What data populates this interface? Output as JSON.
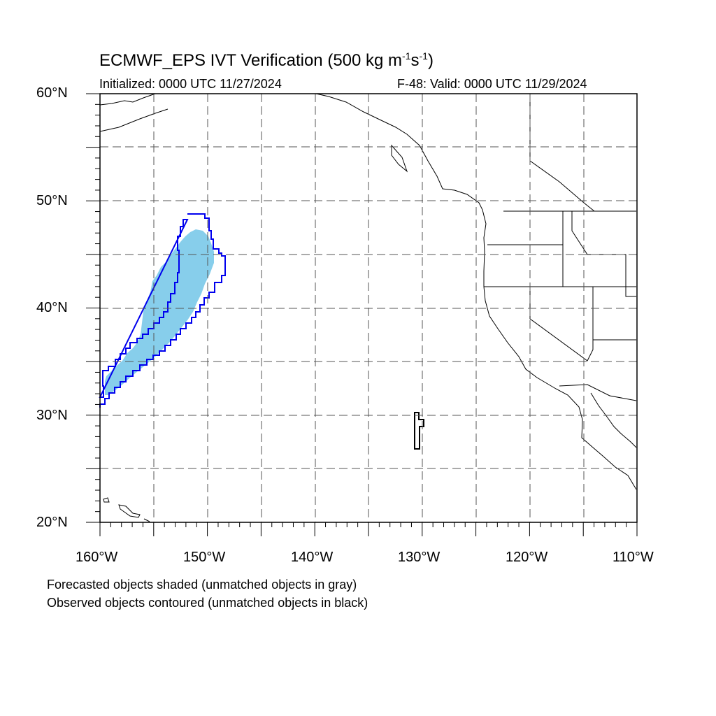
{
  "title": {
    "prefix": "ECMWF_EPS IVT Verification (500 kg m",
    "sup1": "-1",
    "mid": "s",
    "sup2": "-1",
    "suffix": ")"
  },
  "initialized": "Initialized: 0000 UTC 11/27/2024",
  "valid": "F-48: Valid: 0000 UTC 11/29/2024",
  "map": {
    "lon_range": [
      -160,
      -110
    ],
    "lat_range": [
      20,
      60
    ],
    "gridlines": "dashed, every 5 degrees",
    "lat_labels": [
      "60°N",
      "50°N",
      "40°N",
      "30°N",
      "20°N"
    ],
    "lon_labels": [
      "160°W",
      "150°W",
      "140°W",
      "130°W",
      "120°W",
      "110°W"
    ],
    "colors": {
      "forecast_fill": "#87ceeb",
      "observed_matched": "#0000ee",
      "observed_unmatched": "#000000",
      "coastline": "#000000",
      "grid": "#555555"
    },
    "objects": [
      {
        "kind": "forecast",
        "matched": true,
        "style": "shaded"
      },
      {
        "kind": "observed",
        "matched": true,
        "style": "contour"
      },
      {
        "kind": "observed",
        "matched": false,
        "style": "contour"
      }
    ]
  },
  "notes": [
    "Forecasted objects shaded (unmatched objects in gray)",
    "Observed objects contoured (unmatched objects in black)"
  ]
}
